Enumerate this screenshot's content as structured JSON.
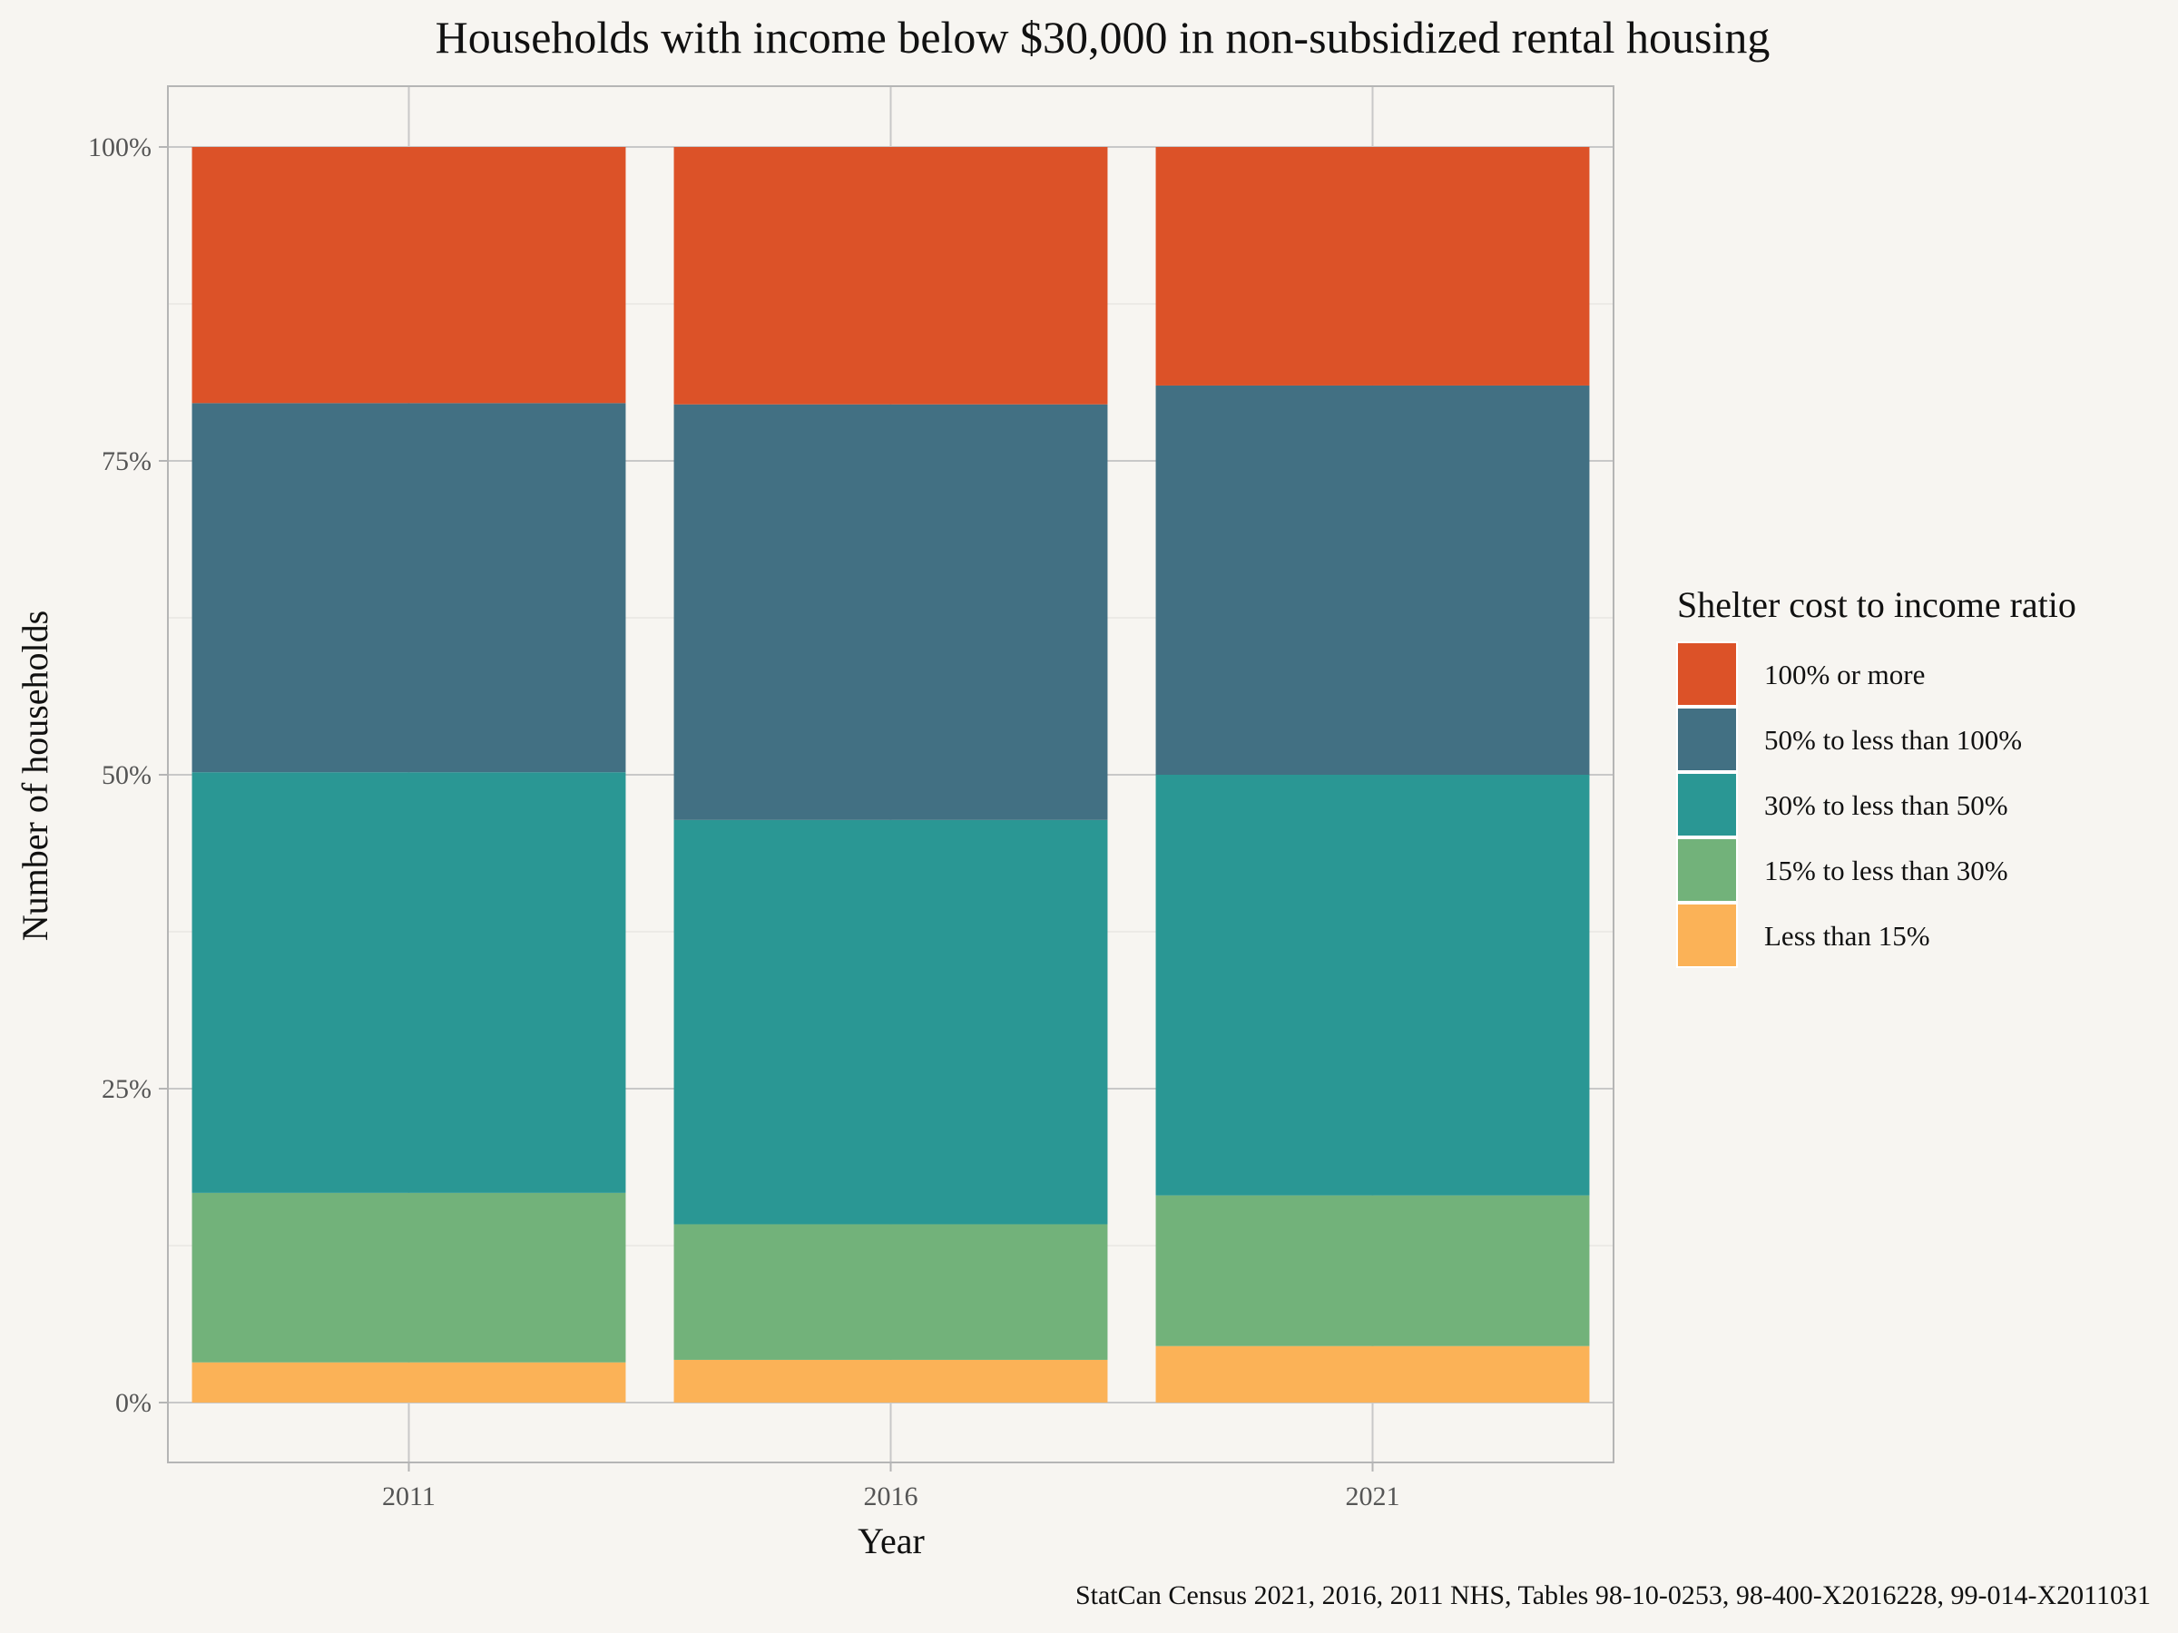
{
  "chart_data": {
    "type": "bar",
    "stacked": true,
    "percent_stacked": true,
    "title": "Households with income below $30,000 in non-subsidized rental housing",
    "xlabel": "Year",
    "ylabel": "Number of households",
    "categories": [
      "2011",
      "2016",
      "2021"
    ],
    "ylim": [
      0,
      1
    ],
    "yticks": [
      0,
      0.25,
      0.5,
      0.75,
      1.0
    ],
    "ytick_labels": [
      "0%",
      "25%",
      "50%",
      "75%",
      "100%"
    ],
    "grid": true,
    "legend_title": "Shelter cost to income ratio",
    "legend_position": "right",
    "series": [
      {
        "name": "Less than 15%",
        "color": "#fbb257",
        "values": [
          0.032,
          0.034,
          0.045
        ]
      },
      {
        "name": "15% to less than 30%",
        "color": "#72b27a",
        "values": [
          0.135,
          0.108,
          0.12
        ]
      },
      {
        "name": "30% to less than 50%",
        "color": "#2a9794",
        "values": [
          0.335,
          0.322,
          0.335
        ]
      },
      {
        "name": "50% to less than 100%",
        "color": "#427083",
        "values": [
          0.294,
          0.331,
          0.31
        ]
      },
      {
        "name": "100% or more",
        "color": "#dc5228",
        "values": [
          0.204,
          0.205,
          0.19
        ]
      }
    ],
    "caption": "StatCan Census 2021, 2016, 2011 NHS, Tables 98-10-0253, 98-400-X2016228, 99-014-X2011031"
  },
  "colors": {
    "background": "#f7f5f1",
    "grid_major": "#c8c8c8",
    "grid_minor": "#e8e6e2",
    "panel_border": "#b5b5b5"
  }
}
